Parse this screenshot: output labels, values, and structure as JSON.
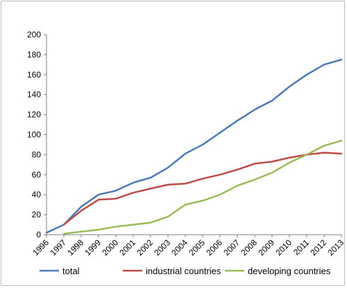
{
  "chart_data": {
    "type": "line",
    "title": "",
    "xlabel": "",
    "ylabel": "",
    "ylim": [
      0,
      200
    ],
    "yticks": [
      0,
      20,
      40,
      60,
      80,
      100,
      120,
      140,
      160,
      180,
      200
    ],
    "grid": false,
    "legend_position": "bottom",
    "categories": [
      "1996",
      "1997",
      "1998",
      "1999",
      "2000",
      "2001",
      "2002",
      "2003",
      "2004",
      "2005",
      "2006",
      "2007",
      "2008",
      "2009",
      "2010",
      "2011",
      "2012",
      "2013"
    ],
    "series": [
      {
        "name": "total",
        "color": "#4a7ab5",
        "values": [
          2,
          10,
          28,
          40,
          44,
          52,
          57,
          67,
          81,
          90,
          102,
          114,
          125,
          134,
          148,
          160,
          170,
          175
        ]
      },
      {
        "name": "industrial countries",
        "color": "#be4b48",
        "values": [
          null,
          10,
          24,
          35,
          36,
          42,
          46,
          50,
          51,
          56,
          60,
          65,
          71,
          73,
          77,
          80,
          82,
          81
        ]
      },
      {
        "name": "developing countries",
        "color": "#9bbb59",
        "values": [
          null,
          1,
          3,
          5,
          8,
          10,
          12,
          18,
          30,
          34,
          40,
          49,
          55,
          62,
          72,
          80,
          89,
          94
        ]
      }
    ]
  }
}
